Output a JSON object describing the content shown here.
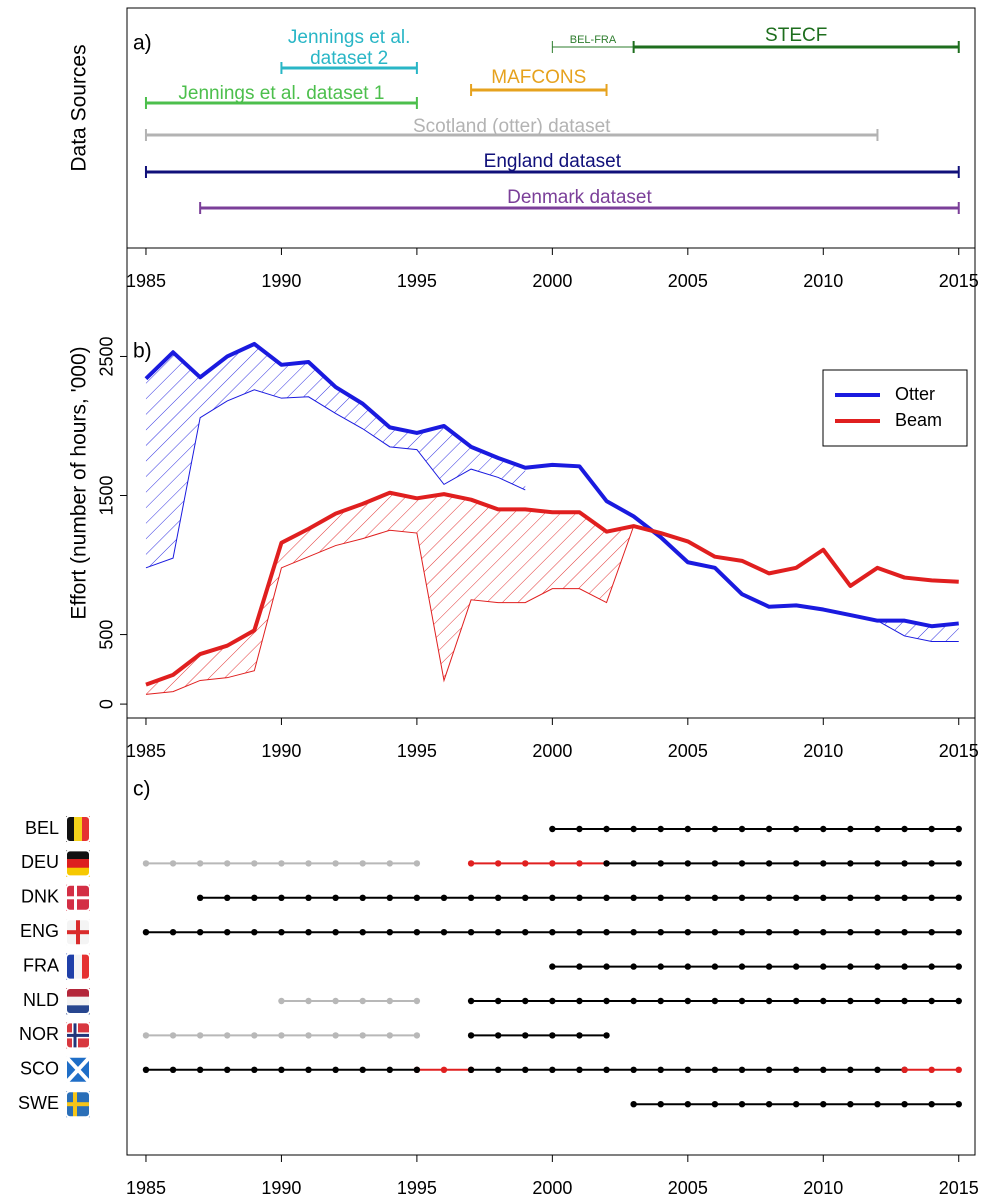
{
  "chart_data": [
    {
      "type": "timeline",
      "ylabel": "Data Sources",
      "panel_label": "a)",
      "xlim": [
        1984.3,
        2015.6
      ],
      "xticks": [
        1985,
        1990,
        1995,
        2000,
        2005,
        2010,
        2015
      ],
      "sources": [
        {
          "label": [
            "Jennings et al.",
            "dataset 2"
          ],
          "start": 1990,
          "end": 1995,
          "color": "#29b6c6"
        },
        {
          "label": [
            "BEL-FRA"
          ],
          "start": 2000,
          "end": 2003,
          "color": "#2e7d2e"
        },
        {
          "label": [
            "STECF"
          ],
          "start": 2003,
          "end": 2015,
          "color": "#1e6e1e"
        },
        {
          "label": [
            "MAFCONS"
          ],
          "start": 1997,
          "end": 2002,
          "color": "#e6a21e"
        },
        {
          "label": [
            "Jennings et al. dataset 1"
          ],
          "start": 1985,
          "end": 1995,
          "color": "#4cbf4c"
        },
        {
          "label": [
            "Scotland (otter) dataset"
          ],
          "start": 1985,
          "end": 2012,
          "color": "#b3b3b3"
        },
        {
          "label": [
            "England dataset"
          ],
          "start": 1985,
          "end": 2015,
          "color": "#10107a"
        },
        {
          "label": [
            "Denmark dataset"
          ],
          "start": 1987,
          "end": 2015,
          "color": "#7b3f99"
        }
      ]
    },
    {
      "type": "line",
      "ylabel": "Effort (number of hours, '000)",
      "panel_label": "b)",
      "xlim": [
        1984.3,
        2015.6
      ],
      "xticks": [
        1985,
        1990,
        1995,
        2000,
        2005,
        2010,
        2015
      ],
      "ylim": [
        -100,
        3280
      ],
      "yticks": [
        0,
        500,
        1500,
        2500
      ],
      "grid": false,
      "legend": "top-right",
      "x": [
        1985,
        1986,
        1987,
        1988,
        1989,
        1990,
        1991,
        1992,
        1993,
        1994,
        1995,
        1996,
        1997,
        1998,
        1999,
        2000,
        2001,
        2002,
        2003,
        2004,
        2005,
        2006,
        2007,
        2008,
        2009,
        2010,
        2011,
        2012,
        2013,
        2014,
        2015
      ],
      "series": [
        {
          "name": "Otter",
          "color": "#1a1adf",
          "values": [
            2340,
            2530,
            2350,
            2500,
            2590,
            2440,
            2460,
            2280,
            2160,
            1990,
            1950,
            2000,
            1850,
            1770,
            1700,
            1720,
            1710,
            1460,
            1350,
            1200,
            1020,
            980,
            790,
            700,
            710,
            680,
            640,
            600,
            600,
            560,
            580
          ],
          "lower": [
            980,
            1050,
            2060,
            2180,
            2260,
            2200,
            2210,
            2090,
            1980,
            1850,
            1830,
            1580,
            1690,
            1630,
            1540,
            null,
            null,
            null,
            null,
            null,
            null,
            null,
            null,
            null,
            null,
            null,
            null,
            600,
            490,
            450,
            450
          ]
        },
        {
          "name": "Beam",
          "color": "#e01f1f",
          "values": [
            140,
            210,
            360,
            420,
            530,
            1160,
            1260,
            1370,
            1440,
            1520,
            1480,
            1510,
            1470,
            1400,
            1400,
            1380,
            1380,
            1240,
            1280,
            1230,
            1170,
            1060,
            1030,
            940,
            980,
            1110,
            850,
            980,
            910,
            890,
            880
          ],
          "lower": [
            70,
            90,
            170,
            190,
            240,
            980,
            1060,
            1140,
            1190,
            1250,
            1230,
            170,
            750,
            730,
            730,
            830,
            830,
            730,
            1280,
            null,
            null,
            null,
            null,
            null,
            null,
            null,
            null,
            null,
            null,
            null,
            null
          ]
        }
      ]
    },
    {
      "type": "coverage",
      "panel_label": "c)",
      "xlim": [
        1984.3,
        2015.6
      ],
      "xticks": [
        1985,
        1990,
        1995,
        2000,
        2005,
        2010,
        2015
      ],
      "countries": [
        {
          "name": "BEL",
          "segments": [
            {
              "start": 2000,
              "end": 2015,
              "color": "#000000"
            }
          ]
        },
        {
          "name": "DEU",
          "segments": [
            {
              "start": 1985,
              "end": 1995,
              "color": "#b8b8b8"
            },
            {
              "start": 1997,
              "end": 2002,
              "color": "#e02020"
            },
            {
              "start": 2002,
              "end": 2015,
              "color": "#000000"
            }
          ]
        },
        {
          "name": "DNK",
          "segments": [
            {
              "start": 1987,
              "end": 2015,
              "color": "#000000"
            }
          ]
        },
        {
          "name": "ENG",
          "segments": [
            {
              "start": 1985,
              "end": 2015,
              "color": "#000000"
            }
          ]
        },
        {
          "name": "FRA",
          "segments": [
            {
              "start": 2000,
              "end": 2015,
              "color": "#000000"
            }
          ]
        },
        {
          "name": "NLD",
          "segments": [
            {
              "start": 1990,
              "end": 1995,
              "color": "#b8b8b8"
            },
            {
              "start": 1997,
              "end": 2015,
              "color": "#000000"
            }
          ]
        },
        {
          "name": "NOR",
          "segments": [
            {
              "start": 1985,
              "end": 1995,
              "color": "#b8b8b8"
            },
            {
              "start": 1997,
              "end": 2002,
              "color": "#000000"
            }
          ]
        },
        {
          "name": "SCO",
          "segments": [
            {
              "start": 1995,
              "end": 1997,
              "color": "#e02020"
            },
            {
              "start": 1985,
              "end": 1995,
              "color": "#000000"
            },
            {
              "start": 1997,
              "end": 2013,
              "color": "#000000"
            },
            {
              "start": 2013,
              "end": 2015,
              "color": "#e02020"
            }
          ]
        },
        {
          "name": "SWE",
          "segments": [
            {
              "start": 2003,
              "end": 2015,
              "color": "#000000"
            }
          ]
        }
      ]
    }
  ]
}
